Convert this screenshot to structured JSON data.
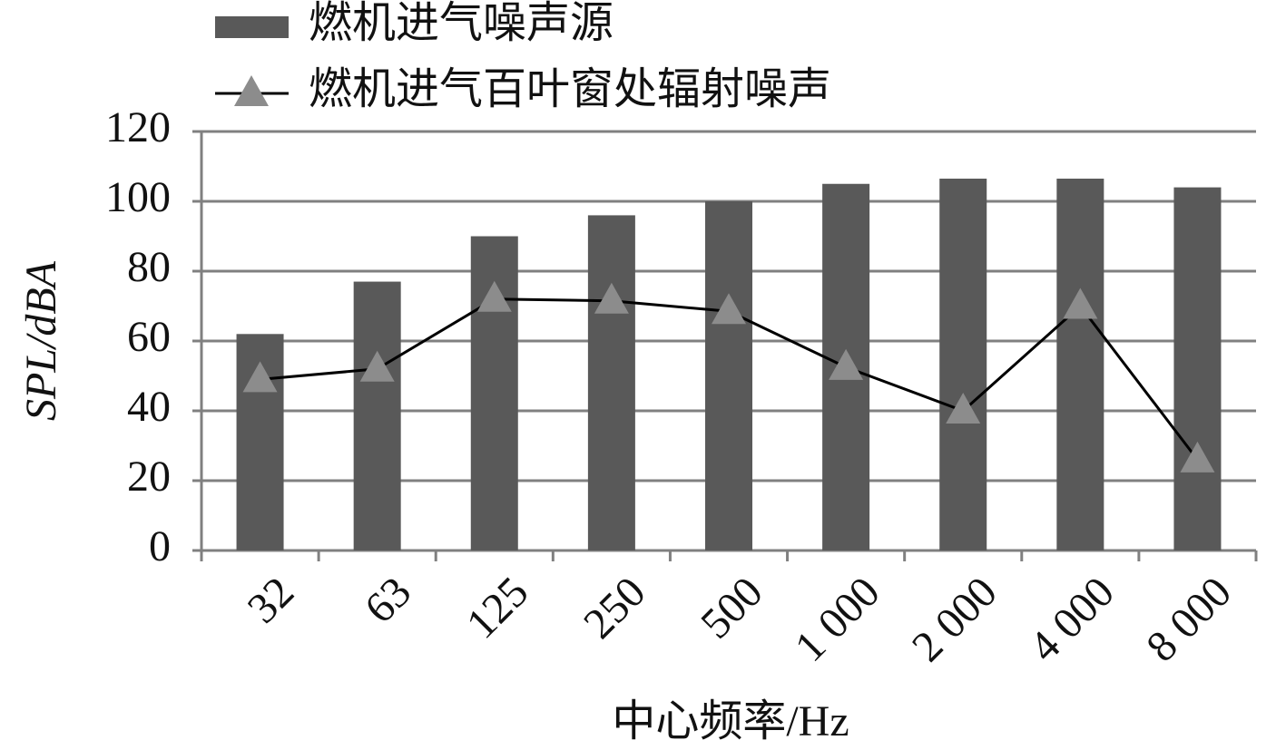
{
  "chart_data": {
    "type": "bar",
    "x_label": "中心频率/Hz",
    "y_label": "SPL/dBA",
    "categories": [
      "32",
      "63",
      "125",
      "250",
      "500",
      "1 000",
      "2 000",
      "4 000",
      "8 000"
    ],
    "series": [
      {
        "name": "燃机进气噪声源",
        "type": "bar",
        "color": "#595959",
        "values": [
          62,
          77,
          90,
          96,
          100,
          105,
          106.5,
          106.5,
          104
        ]
      },
      {
        "name": "燃机进气百叶窗处辐射噪声",
        "type": "line",
        "color": "#000000",
        "marker_color": "#8c8c8c",
        "values": [
          49,
          52,
          72,
          71.5,
          68.5,
          52.5,
          40,
          70,
          26
        ]
      }
    ],
    "ylim": [
      0,
      120
    ],
    "yticks": [
      0,
      20,
      40,
      60,
      80,
      100,
      120
    ],
    "grid": true,
    "legend": "top-left"
  }
}
